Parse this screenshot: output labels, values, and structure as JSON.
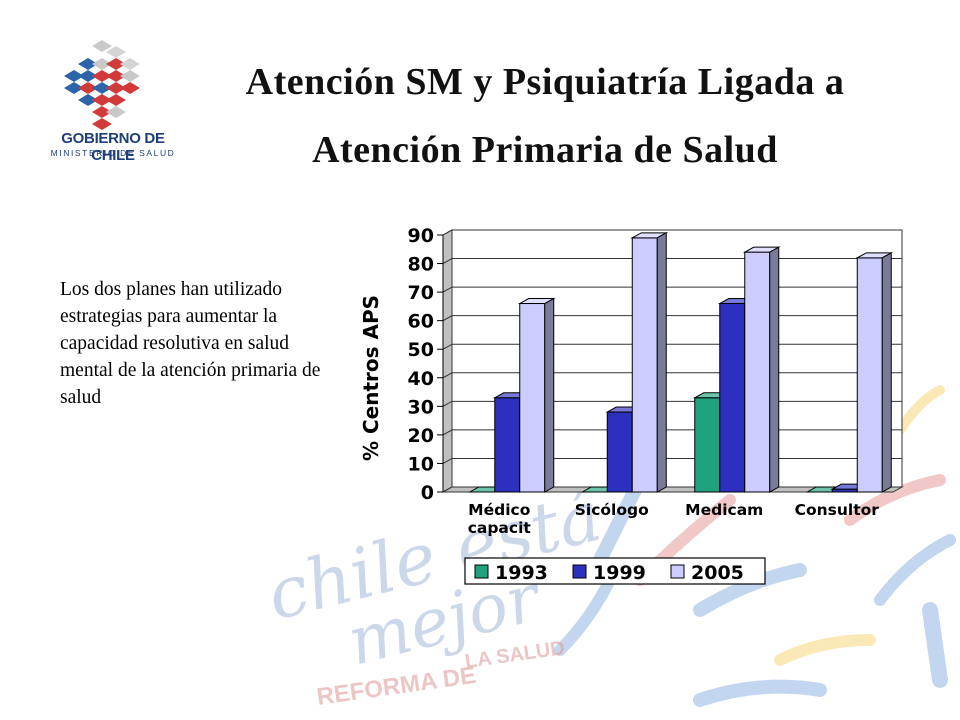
{
  "header": {
    "title_line1": "Atención SM y Psiquiatría Ligada a",
    "title_line2": "Atención Primaria de Salud"
  },
  "logo": {
    "organization": "GOBIERNO DE CHILE",
    "department": "MINISTERIO DE SALUD"
  },
  "body": {
    "paragraph": "Los dos planes han utilizado estrategias para aumentar la capacidad resolutiva en salud mental de la atención primaria de salud"
  },
  "watermark": {
    "text1": "chile está",
    "text2": "mejor",
    "text3": "REFORMA DE",
    "text4": "LA SALUD"
  },
  "chart_data": {
    "type": "bar",
    "ylabel": "% Centros APS",
    "xlabel": "",
    "ylim": [
      0,
      90
    ],
    "yticks": [
      0,
      10,
      20,
      30,
      40,
      50,
      60,
      70,
      80,
      90
    ],
    "categories": [
      [
        "Médico",
        "capacit"
      ],
      [
        "Sicólogo"
      ],
      [
        "Medicam"
      ],
      [
        "Consultor"
      ]
    ],
    "series": [
      {
        "name": "1993",
        "values": [
          0,
          0,
          33,
          0
        ],
        "color": "#1fa37e"
      },
      {
        "name": "1999",
        "values": [
          33,
          28,
          66,
          1
        ],
        "color": "#2d2fbf"
      },
      {
        "name": "2005",
        "values": [
          66,
          89,
          84,
          82
        ],
        "color": "#ccccff"
      }
    ],
    "grid": true,
    "legend_position": "bottom"
  }
}
